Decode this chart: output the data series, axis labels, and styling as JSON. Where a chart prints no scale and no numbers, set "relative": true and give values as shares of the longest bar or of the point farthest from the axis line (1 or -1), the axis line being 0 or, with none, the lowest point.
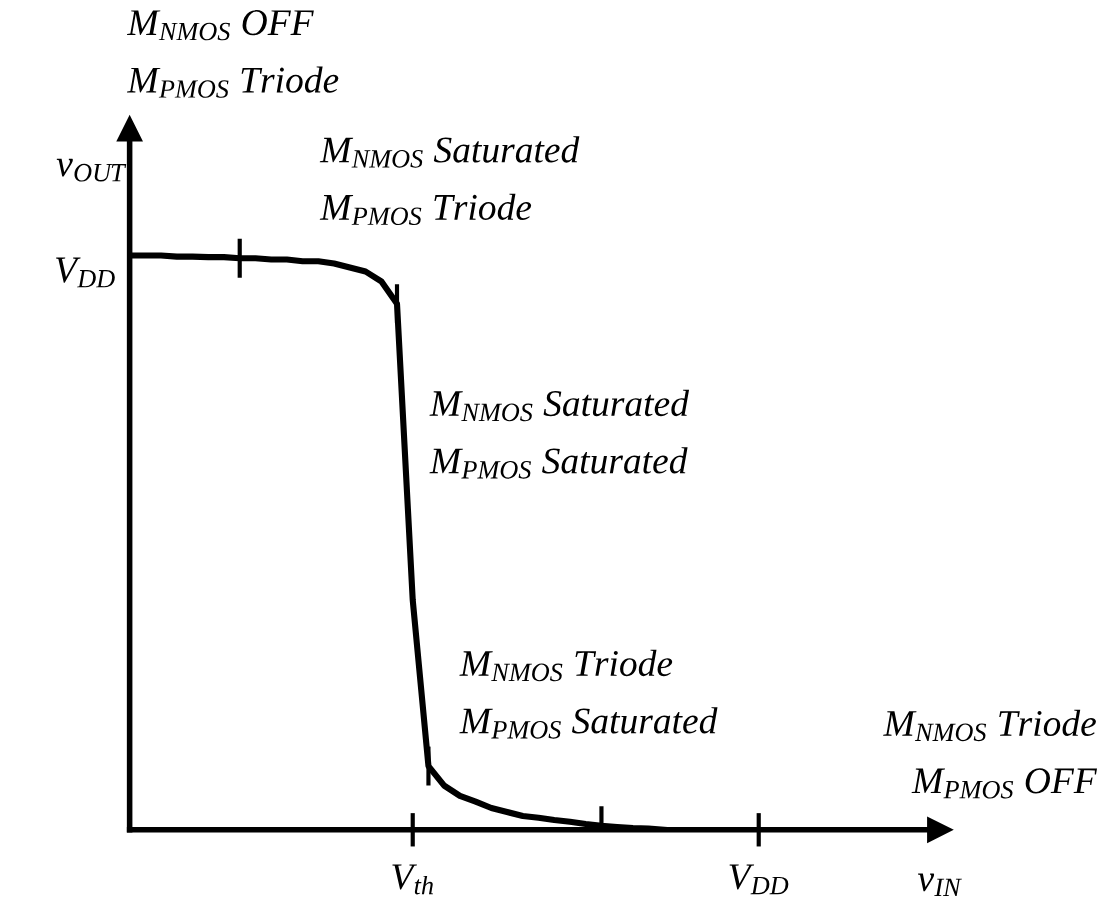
{
  "chart_data": {
    "type": "line",
    "relative": true,
    "xlabel": "v$_{IN}$",
    "ylabel": "v$_{OUT}$",
    "categories": [
      null,
      null,
      null,
      null,
      null,
      null,
      null,
      null,
      null,
      null,
      null,
      null,
      null,
      null,
      null,
      null,
      null,
      null,
      "V$_{th}$",
      null,
      null,
      null,
      null,
      null,
      null,
      null,
      null,
      null,
      null,
      null,
      null,
      null,
      null,
      null,
      null,
      null,
      null,
      null,
      null,
      null,
      "V$_{DD}$",
      null,
      null,
      null,
      null,
      null,
      null,
      null,
      null,
      null,
      null,
      null
    ],
    "series": [
      {
        "color": "#000000",
        "values": [
          1.0,
          1.0,
          1.0,
          0.998,
          0.998,
          0.997,
          0.997,
          0.995,
          0.995,
          0.993,
          0.993,
          0.99,
          0.99,
          0.986,
          0.979,
          0.972,
          0.955,
          0.916,
          0.4,
          0.111,
          0.077,
          0.059,
          0.049,
          0.038,
          0.031,
          0.024,
          0.021,
          0.017,
          0.014,
          0.01,
          0.007,
          0.005,
          0.003,
          0.002,
          0,
          null,
          null,
          null,
          null,
          null,
          null,
          null,
          null,
          null,
          null,
          null,
          null,
          null,
          null,
          null,
          null,
          null
        ]
      }
    ],
    "legend": false,
    "marker": "none",
    "line_style": "solid",
    "annotations": [
      "M$_{NMOS}$ OFF\nM$_{PMOS}$ Triode",
      "M$_{NMOS}$ Saturated\nM$_{PMOS}$ Triode",
      "M$_{NMOS}$ Saturated\nM$_{PMOS}$ Saturated",
      "M$_{NMOS}$ Triode\nM$_{PMOS}$ Saturated",
      "M$_{NMOS}$ Triode\nM$_{PMOS}$ OFF",
      "V$_{DD}$"
    ]
  }
}
